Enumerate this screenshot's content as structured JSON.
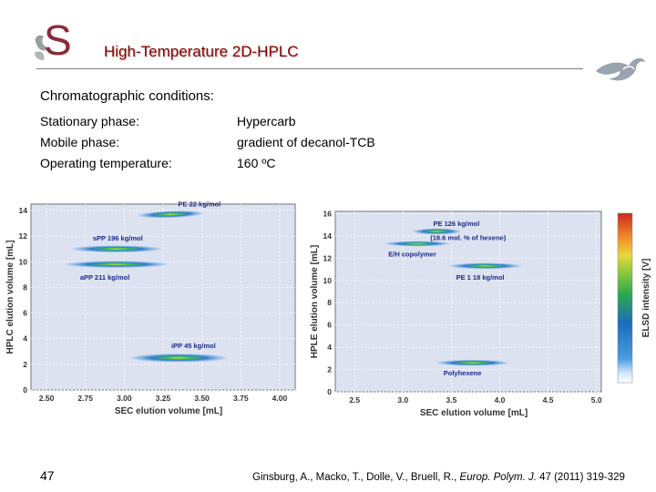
{
  "header": {
    "title": "High-Temperature 2D-HPLC",
    "logo_icon": "university-s-logo-icon",
    "decor_icon": "swirl-icon",
    "title_color": "#8b0000"
  },
  "conditions": {
    "heading": "Chromatographic conditions:",
    "rows": [
      {
        "label": "Stationary phase:",
        "value": "Hypercarb"
      },
      {
        "label": "Mobile phase:",
        "value": "gradient of decanol-TCB"
      },
      {
        "label": "Operating temperature:",
        "value": "160 ºC"
      }
    ]
  },
  "chart_data": [
    {
      "type": "heatmap",
      "xlabel": "SEC elution volume [mL]",
      "ylabel": "HPLC elution volume [mL]",
      "xlim": [
        2.4,
        4.1
      ],
      "ylim": [
        0,
        14.5
      ],
      "x_ticks": [
        "2.50",
        "2.75",
        "3.00",
        "3.25",
        "3.50",
        "3.75",
        "4.00"
      ],
      "y_ticks": [
        "0",
        "2",
        "4",
        "6",
        "8",
        "10",
        "12",
        "14"
      ],
      "grid": true,
      "spots": [
        {
          "label": "PE 22 kg/mol",
          "x": 3.3,
          "y": 13.7
        },
        {
          "label": "sPP 196 kg/mol",
          "x": 2.95,
          "y": 11.0
        },
        {
          "label": "aPP 211 kg/mol",
          "x": 2.95,
          "y": 9.8
        },
        {
          "label": "iPP 45 kg/mol",
          "x": 3.35,
          "y": 2.5
        }
      ]
    },
    {
      "type": "heatmap",
      "xlabel": "SEC elution volume [mL]",
      "ylabel": "HPLE elution volume [mL]",
      "colorbar_label": "ELSD intensity [V]",
      "xlim": [
        2.3,
        5.05
      ],
      "ylim": [
        0,
        16.2
      ],
      "x_ticks": [
        "2.5",
        "3.0",
        "3.5",
        "4.0",
        "4.5",
        "5.0"
      ],
      "y_ticks": [
        "0",
        "2",
        "4",
        "6",
        "8",
        "10",
        "12",
        "14",
        "16"
      ],
      "grid": true,
      "spots": [
        {
          "label": "PE 126 kg/mol",
          "x": 3.35,
          "y": 14.4
        },
        {
          "label": "E/H copolymer",
          "x": 3.15,
          "y": 13.3
        },
        {
          "label": "(18.6 mol. % of hexene)",
          "x": 3.15,
          "y": 13.3
        },
        {
          "label": "PE 1 18 kg/mol",
          "x": 3.85,
          "y": 11.3
        },
        {
          "label": "Polyhexene",
          "x": 3.72,
          "y": 2.6
        }
      ]
    }
  ],
  "footer": {
    "page_number": "47",
    "citation_authors": "Ginsburg, A., Macko, T., Dolle, V., Bruell, R., ",
    "citation_journal": "Europ. Polym. J.",
    "citation_rest": " 47 (2011) 319-329"
  }
}
